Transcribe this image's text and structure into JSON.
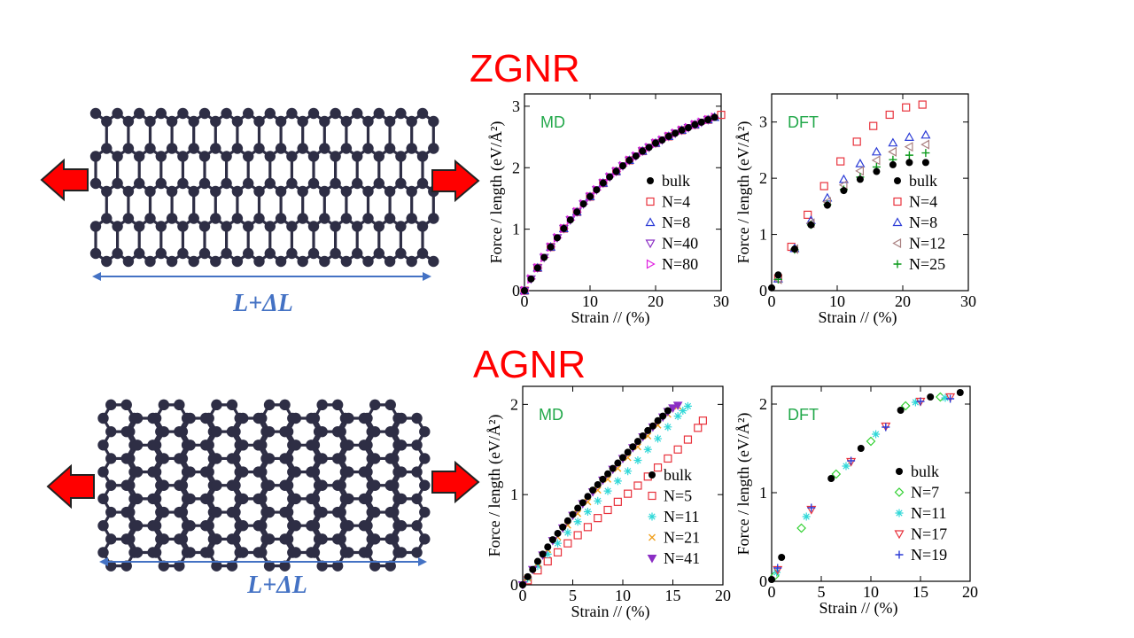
{
  "colors": {
    "title": "#ff0000",
    "arrow_fill": "#ff0000",
    "arrow_stroke": "#222222",
    "atom": "#2e2e45",
    "bond": "#2e2e45",
    "length_arrow": "#4472c4",
    "panel_label": "#22a84a"
  },
  "slide": {
    "zgnr": {
      "title": "ZGNR",
      "length_label": "L+ΔL"
    },
    "agnr": {
      "title": "AGNR",
      "length_label": "L+ΔL"
    }
  },
  "chart_data": [
    {
      "type": "scatter",
      "panel": "ZGNR MD",
      "panel_label": "MD",
      "xlabel": "Strain //  (%)",
      "ylabel": "Force / length  (eV/Å²)",
      "xlim": [
        0,
        30
      ],
      "ylim": [
        0,
        3.2
      ],
      "xticks": [
        0,
        10,
        20,
        30
      ],
      "yticks": [
        0,
        1,
        2,
        3
      ],
      "legend_position": "bottom-right",
      "series": [
        {
          "name": "bulk",
          "marker": "filled-circle",
          "color": "#000000",
          "x": [
            0,
            1,
            2,
            3,
            4,
            5,
            6,
            7,
            8,
            9,
            10,
            11,
            12,
            13,
            14,
            15,
            16,
            17,
            18,
            19,
            20,
            21,
            22,
            23,
            24,
            25,
            26,
            27,
            28,
            29
          ],
          "y": [
            0,
            0.19,
            0.37,
            0.54,
            0.71,
            0.86,
            1.01,
            1.15,
            1.28,
            1.41,
            1.53,
            1.64,
            1.75,
            1.85,
            1.94,
            2.03,
            2.12,
            2.19,
            2.27,
            2.33,
            2.4,
            2.45,
            2.51,
            2.56,
            2.61,
            2.65,
            2.7,
            2.74,
            2.78,
            2.82
          ]
        },
        {
          "name": "N=4",
          "marker": "open-square",
          "color": "#e8323c",
          "x": [
            0,
            2,
            4,
            6,
            8,
            10,
            12,
            14,
            16,
            18,
            20,
            22,
            24,
            26,
            28,
            30
          ],
          "y": [
            0,
            0.37,
            0.71,
            1.01,
            1.28,
            1.53,
            1.75,
            1.94,
            2.12,
            2.27,
            2.4,
            2.51,
            2.61,
            2.7,
            2.78,
            2.86
          ]
        },
        {
          "name": "N=8",
          "marker": "open-triangle-up",
          "color": "#2c3cd6",
          "x": [
            0,
            2,
            4,
            6,
            8,
            10,
            12,
            14,
            16,
            18,
            20,
            22,
            24,
            26,
            28,
            29
          ],
          "y": [
            0,
            0.37,
            0.71,
            1.01,
            1.28,
            1.53,
            1.75,
            1.94,
            2.12,
            2.27,
            2.4,
            2.51,
            2.61,
            2.7,
            2.78,
            2.82
          ]
        },
        {
          "name": "N=40",
          "marker": "open-triangle-down",
          "color": "#8b2ec4",
          "x": [
            0,
            1,
            2,
            3,
            4,
            5,
            6,
            7,
            8,
            9,
            10,
            11,
            12,
            13,
            14,
            15,
            16,
            17,
            18,
            19,
            20,
            21,
            22,
            23,
            24,
            25,
            26,
            27,
            28
          ],
          "y": [
            0,
            0.19,
            0.37,
            0.54,
            0.71,
            0.86,
            1.01,
            1.15,
            1.28,
            1.41,
            1.53,
            1.64,
            1.75,
            1.85,
            1.94,
            2.03,
            2.12,
            2.19,
            2.27,
            2.33,
            2.4,
            2.45,
            2.51,
            2.56,
            2.61,
            2.65,
            2.7,
            2.74,
            2.78
          ]
        },
        {
          "name": "N=80",
          "marker": "open-triangle-right",
          "color": "#e020e0",
          "x": [
            0,
            1,
            2,
            3,
            4,
            5,
            6,
            7,
            8,
            9,
            10,
            11,
            12,
            13,
            14,
            15,
            16,
            17,
            18,
            19,
            20,
            21,
            22,
            23,
            24,
            25,
            26,
            27,
            28,
            29
          ],
          "y": [
            0,
            0.19,
            0.37,
            0.54,
            0.71,
            0.86,
            1.01,
            1.15,
            1.28,
            1.41,
            1.53,
            1.64,
            1.75,
            1.85,
            1.94,
            2.03,
            2.12,
            2.19,
            2.27,
            2.33,
            2.4,
            2.45,
            2.51,
            2.56,
            2.61,
            2.65,
            2.7,
            2.74,
            2.78,
            2.82
          ]
        }
      ]
    },
    {
      "type": "scatter",
      "panel": "ZGNR DFT",
      "panel_label": "DFT",
      "xlabel": "Strain //  (%)",
      "ylabel": "Force / length  (eV/Å²)",
      "xlim": [
        0,
        30
      ],
      "ylim": [
        0,
        3.5
      ],
      "xticks": [
        0,
        10,
        20,
        30
      ],
      "yticks": [
        0,
        1,
        2,
        3
      ],
      "legend_position": "bottom-right",
      "series": [
        {
          "name": "bulk",
          "marker": "filled-circle",
          "color": "#000000",
          "x": [
            0,
            1,
            3.5,
            6,
            8.5,
            11,
            13.5,
            16,
            18.5,
            21,
            23.5
          ],
          "y": [
            0.05,
            0.28,
            0.74,
            1.17,
            1.52,
            1.78,
            1.98,
            2.12,
            2.24,
            2.28,
            2.28
          ]
        },
        {
          "name": "N=4",
          "marker": "open-square",
          "color": "#e8323c",
          "x": [
            1,
            3,
            5.5,
            8,
            10.5,
            13,
            15.5,
            18,
            20.5,
            23
          ],
          "y": [
            0.22,
            0.78,
            1.35,
            1.86,
            2.3,
            2.65,
            2.93,
            3.13,
            3.26,
            3.31
          ]
        },
        {
          "name": "N=8",
          "marker": "open-triangle-up",
          "color": "#2c3cd6",
          "x": [
            1,
            3.5,
            6,
            8.5,
            11,
            13.5,
            16,
            18.5,
            21,
            23.5
          ],
          "y": [
            0.21,
            0.75,
            1.25,
            1.65,
            1.98,
            2.26,
            2.47,
            2.63,
            2.73,
            2.77
          ]
        },
        {
          "name": "N=12",
          "marker": "open-triangle-left",
          "color": "#a98080",
          "x": [
            1,
            3.5,
            6,
            8.5,
            11,
            13.5,
            16,
            18.5,
            21,
            23.5
          ],
          "y": [
            0.2,
            0.74,
            1.2,
            1.58,
            1.88,
            2.13,
            2.32,
            2.47,
            2.56,
            2.6
          ]
        },
        {
          "name": "N=25",
          "marker": "plus",
          "color": "#0a9a1a",
          "x": [
            1,
            3.5,
            6,
            8.5,
            11,
            13.5,
            16,
            18.5,
            21,
            23.5
          ],
          "y": [
            0.2,
            0.73,
            1.17,
            1.53,
            1.8,
            2.02,
            2.2,
            2.33,
            2.41,
            2.45
          ]
        }
      ]
    },
    {
      "type": "scatter",
      "panel": "AGNR MD",
      "panel_label": "MD",
      "xlabel": "Strain //  (%)",
      "ylabel": "Force / length  (eV/Å²)",
      "xlim": [
        0,
        20
      ],
      "ylim": [
        0,
        2.2
      ],
      "xticks": [
        0,
        5,
        10,
        15,
        20
      ],
      "yticks": [
        0,
        1,
        2
      ],
      "legend_position": "bottom-right",
      "series": [
        {
          "name": "bulk",
          "marker": "filled-circle",
          "color": "#000000",
          "x": [
            0,
            0.5,
            1,
            1.5,
            2,
            2.5,
            3,
            3.5,
            4,
            4.5,
            5,
            5.5,
            6,
            6.5,
            7,
            7.5,
            8,
            8.5,
            9,
            9.5,
            10,
            10.5,
            11,
            11.5,
            12,
            12.5,
            13,
            13.5,
            14,
            14.5
          ],
          "y": [
            0,
            0.09,
            0.17,
            0.26,
            0.34,
            0.42,
            0.5,
            0.57,
            0.64,
            0.71,
            0.78,
            0.85,
            0.91,
            0.98,
            1.05,
            1.11,
            1.17,
            1.23,
            1.29,
            1.35,
            1.41,
            1.47,
            1.53,
            1.59,
            1.65,
            1.71,
            1.76,
            1.82,
            1.87,
            1.93
          ]
        },
        {
          "name": "N=5",
          "marker": "open-square",
          "color": "#e8323c",
          "x": [
            0.5,
            1.5,
            2.5,
            3.5,
            4.5,
            5.5,
            6.5,
            7.5,
            8.5,
            9.5,
            10.5,
            11.5,
            12.5,
            13.5,
            14.5,
            15.5,
            16.5,
            17.5,
            18
          ],
          "y": [
            0.05,
            0.16,
            0.26,
            0.36,
            0.46,
            0.55,
            0.64,
            0.74,
            0.83,
            0.92,
            1.01,
            1.1,
            1.2,
            1.3,
            1.4,
            1.5,
            1.61,
            1.74,
            1.82
          ]
        },
        {
          "name": "N=11",
          "marker": "asterisk",
          "color": "#30d8d8",
          "x": [
            0.5,
            1.5,
            2.5,
            3.5,
            4.5,
            5.5,
            6.5,
            7.5,
            8.5,
            9.5,
            10.5,
            11.5,
            12.5,
            13.5,
            14.5,
            15.5,
            16,
            16.5
          ],
          "y": [
            0.07,
            0.21,
            0.34,
            0.46,
            0.58,
            0.7,
            0.81,
            0.93,
            1.04,
            1.15,
            1.26,
            1.38,
            1.5,
            1.62,
            1.75,
            1.87,
            1.93,
            1.98
          ]
        },
        {
          "name": "N=21",
          "marker": "cross",
          "color": "#f0a020",
          "x": [
            0.5,
            1.5,
            2.5,
            3.5,
            4.5,
            5.5,
            6.5,
            7.5,
            8.5,
            9.5,
            10.5,
            11.5,
            12.5,
            13.5,
            14.5,
            15.5
          ],
          "y": [
            0.08,
            0.24,
            0.39,
            0.53,
            0.66,
            0.79,
            0.92,
            1.05,
            1.17,
            1.29,
            1.41,
            1.53,
            1.65,
            1.77,
            1.89,
            1.98
          ]
        },
        {
          "name": "N=41",
          "marker": "filled-triangle-down",
          "color": "#8b2ec4",
          "x": [
            0,
            1,
            2,
            3,
            4,
            5,
            6,
            7,
            8,
            9,
            10,
            11,
            12,
            13,
            14,
            14.5,
            15,
            15.5
          ],
          "y": [
            0,
            0.17,
            0.33,
            0.49,
            0.63,
            0.77,
            0.9,
            1.03,
            1.16,
            1.28,
            1.4,
            1.52,
            1.64,
            1.75,
            1.86,
            1.92,
            1.96,
            1.99
          ]
        }
      ]
    },
    {
      "type": "scatter",
      "panel": "AGNR DFT",
      "panel_label": "DFT",
      "xlabel": "Strain //  (%)",
      "ylabel": "Force / length  (eV/Å²)",
      "xlim": [
        0,
        20
      ],
      "ylim": [
        0,
        2.2
      ],
      "xticks": [
        0,
        5,
        10,
        15,
        20
      ],
      "yticks": [
        0,
        1,
        2
      ],
      "legend_position": "bottom-right",
      "series": [
        {
          "name": "bulk",
          "marker": "filled-circle",
          "color": "#000000",
          "x": [
            0,
            1,
            6,
            9,
            13,
            16,
            19
          ],
          "y": [
            0.02,
            0.27,
            1.16,
            1.5,
            1.93,
            2.08,
            2.13
          ]
        },
        {
          "name": "N=7",
          "marker": "open-diamond",
          "color": "#30d030",
          "x": [
            0.3,
            3,
            6.5,
            10,
            13.5,
            17
          ],
          "y": [
            0.06,
            0.6,
            1.21,
            1.58,
            1.98,
            2.08
          ]
        },
        {
          "name": "N=11",
          "marker": "asterisk",
          "color": "#30d8d8",
          "x": [
            0.5,
            3.5,
            7.5,
            10.5,
            14.5,
            17.5
          ],
          "y": [
            0.1,
            0.73,
            1.3,
            1.66,
            2.02,
            2.07
          ]
        },
        {
          "name": "N=17",
          "marker": "open-triangle-down",
          "color": "#e8323c",
          "x": [
            0.6,
            4,
            8,
            11.5,
            15,
            18
          ],
          "y": [
            0.13,
            0.81,
            1.35,
            1.75,
            2.03,
            2.08
          ]
        },
        {
          "name": "N=19",
          "marker": "plus",
          "color": "#2c3cd6",
          "x": [
            0.6,
            4,
            8,
            11.5,
            15,
            18
          ],
          "y": [
            0.15,
            0.83,
            1.36,
            1.74,
            2.03,
            2.06
          ]
        }
      ]
    }
  ]
}
